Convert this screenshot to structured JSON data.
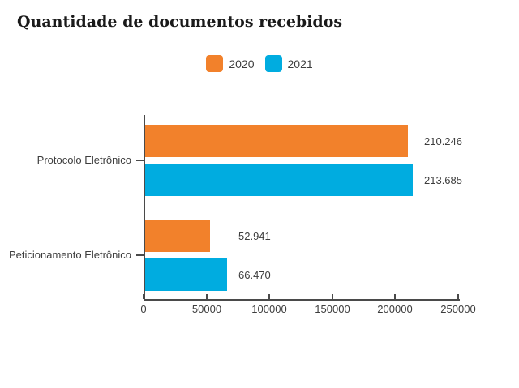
{
  "title": "Quantidade de documentos recebidos",
  "colors": {
    "series_2020": "#F2812B",
    "series_2021": "#00ACE0",
    "axis": "#4A4A4A",
    "text": "#3D3D3D",
    "title_text": "#1A1A1A"
  },
  "chart_data": {
    "type": "bar",
    "orientation": "horizontal",
    "title": "Quantidade de documentos recebidos",
    "categories": [
      "Protocolo Eletrônico",
      "Peticionamento Eletrônico"
    ],
    "series": [
      {
        "name": "2020",
        "color": "#F2812B",
        "values": [
          210246,
          52941
        ],
        "value_labels": [
          "210.246",
          "52.941"
        ]
      },
      {
        "name": "2021",
        "color": "#00ACE0",
        "values": [
          213685,
          66470
        ],
        "value_labels": [
          "213.685",
          "66.470"
        ]
      }
    ],
    "xlabel": "",
    "ylabel": "",
    "xlim": [
      0,
      250000
    ],
    "x_ticks": [
      0,
      50000,
      100000,
      150000,
      200000,
      250000
    ],
    "x_tick_labels": [
      "0",
      "50000",
      "100000",
      "150000",
      "200000",
      "250000"
    ],
    "legend_position": "top-center",
    "grid": false
  }
}
